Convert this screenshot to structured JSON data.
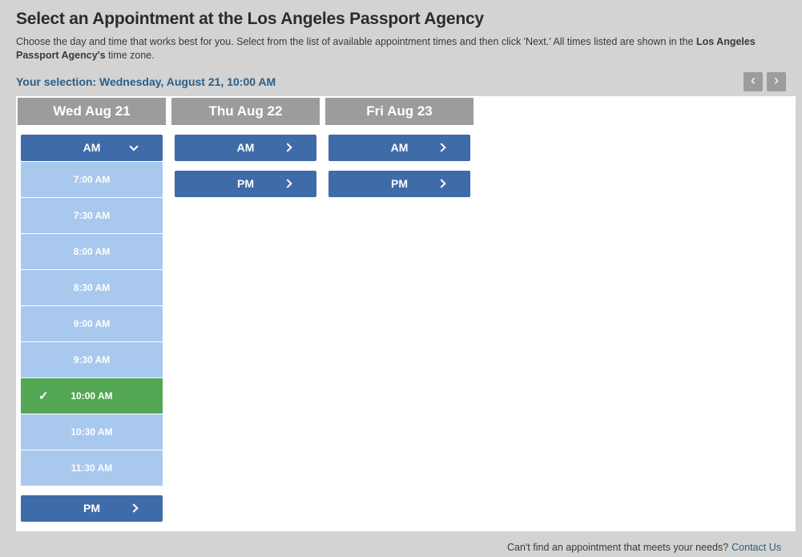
{
  "page": {
    "title": "Select an Appointment at the Los Angeles Passport Agency",
    "description_1": "Choose the day and time that works best for you. Select from the list of available appointment times and then click 'Next.' All times listed are shown in the ",
    "description_bold": "Los Angeles Passport Agency's",
    "description_2": " time zone.",
    "selection_label": "Your selection:",
    "selection_value": "Wednesday, August 21, 10:00 AM",
    "footer_text": "Can't find an appointment that meets your needs?",
    "footer_link": "Contact Us"
  },
  "icons": {
    "prev": "‹",
    "next": "›",
    "check": "✓"
  },
  "columns": [
    {
      "header": "Wed Aug 21",
      "am_label": "AM",
      "am_expanded": true,
      "pm_label": "PM",
      "times": [
        {
          "label": "7:00 AM",
          "selected": false
        },
        {
          "label": "7:30 AM",
          "selected": false
        },
        {
          "label": "8:00 AM",
          "selected": false
        },
        {
          "label": "8:30 AM",
          "selected": false
        },
        {
          "label": "9:00 AM",
          "selected": false
        },
        {
          "label": "9:30 AM",
          "selected": false
        },
        {
          "label": "10:00 AM",
          "selected": true
        },
        {
          "label": "10:30 AM",
          "selected": false
        },
        {
          "label": "11:30 AM",
          "selected": false
        }
      ]
    },
    {
      "header": "Thu Aug 22",
      "am_label": "AM",
      "am_expanded": false,
      "pm_label": "PM",
      "times": []
    },
    {
      "header": "Fri Aug 23",
      "am_label": "AM",
      "am_expanded": false,
      "pm_label": "PM",
      "times": []
    }
  ],
  "colors": {
    "page_bg": "#d3d3d3",
    "panel_bg": "#ffffff",
    "header_bg": "#9c9c9c",
    "nav_btn_bg": "#9c9c9c",
    "button_bg": "#3f6ba9",
    "slot_bg": "#a9c8ee",
    "selected_bg": "#54a754",
    "accent_text": "#2b5e86",
    "title_text": "#2b2b2b",
    "body_text": "#3a3a3a"
  }
}
